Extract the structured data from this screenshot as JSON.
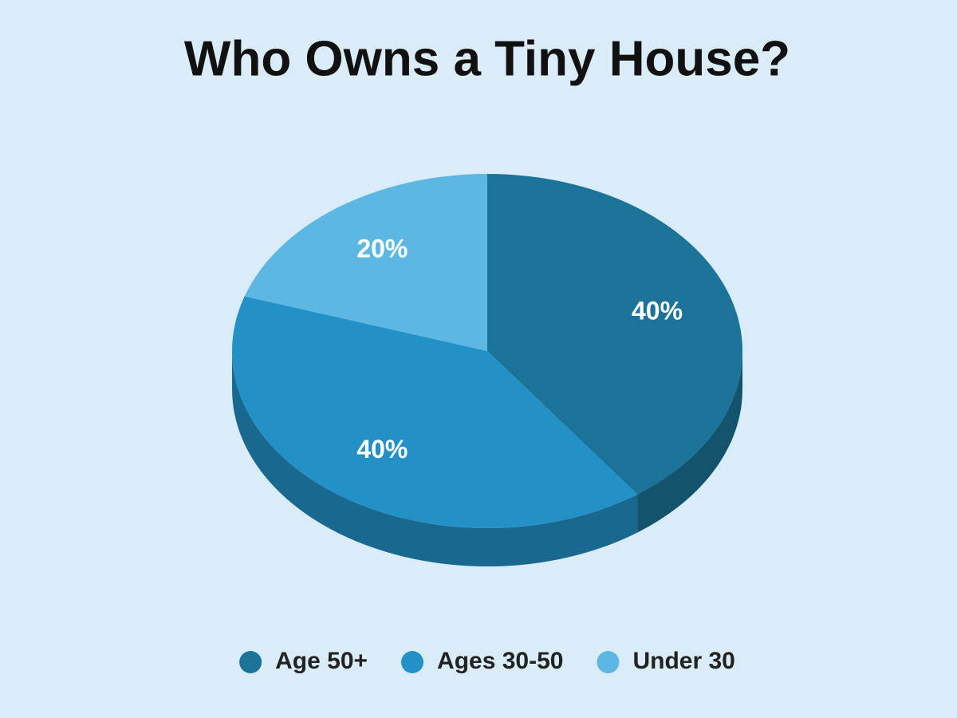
{
  "chart_data": {
    "type": "pie",
    "title": "Who Owns a Tiny House?",
    "categories": [
      "Age 50+",
      "Ages 30-50",
      "Under 30"
    ],
    "values": [
      40,
      40,
      20
    ],
    "value_labels": [
      "40%",
      "40%",
      "20%"
    ],
    "colors": [
      "#1c7399",
      "#2391c8",
      "#5cb8e3"
    ],
    "legend": "bottom"
  }
}
